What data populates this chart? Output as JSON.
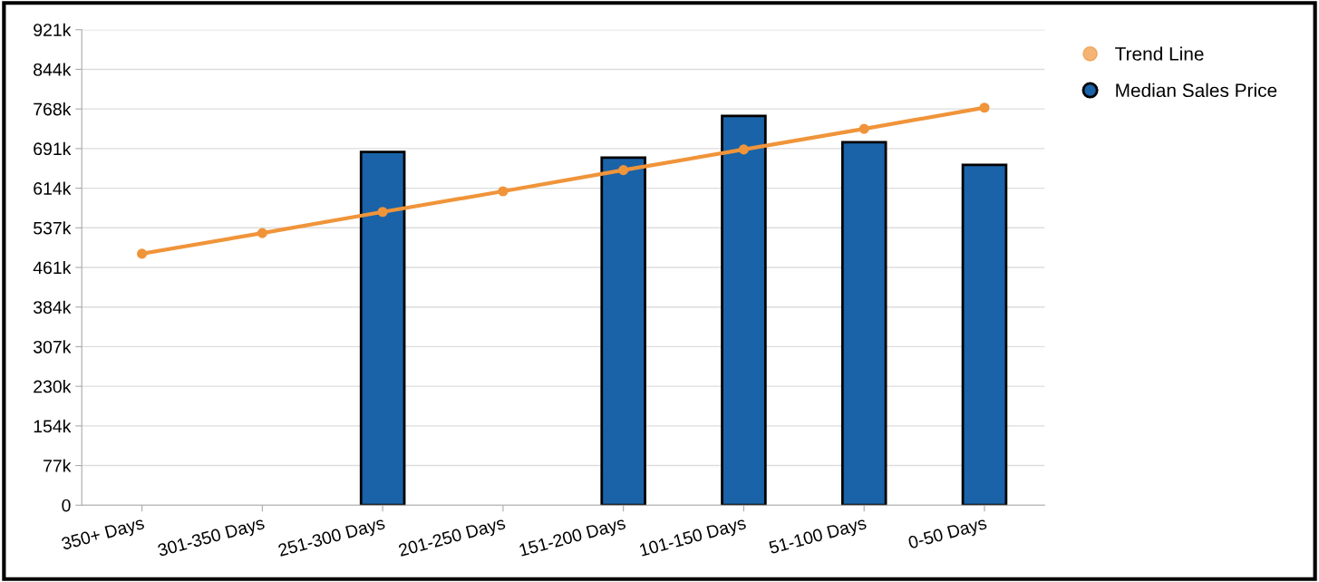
{
  "chart_data": {
    "type": "bar",
    "categories": [
      "350+ Days",
      "301-350 Days",
      "251-300 Days",
      "201-250 Days",
      "151-200 Days",
      "101-150 Days",
      "51-100 Days",
      "0-50 Days"
    ],
    "series": [
      {
        "name": "Trend Line",
        "type": "line",
        "color": "#f0943a",
        "marker": "circle",
        "values": [
          487000,
          527000,
          568000,
          608000,
          649000,
          689000,
          729000,
          770000
        ]
      },
      {
        "name": "Median Sales Price",
        "color": "#1a63a8",
        "values": [
          null,
          null,
          684000,
          null,
          673000,
          754000,
          703000,
          659000
        ]
      }
    ],
    "ylim": [
      0,
      921000
    ],
    "yticks": [
      0,
      {
        "value": 76750,
        "label": "77k"
      },
      {
        "value": 153500,
        "label": "154k"
      },
      {
        "value": 230250,
        "label": "230k"
      },
      {
        "value": 307000,
        "label": "307k"
      },
      {
        "value": 383750,
        "label": "384k"
      },
      {
        "value": 460500,
        "label": "461k"
      },
      {
        "value": 537250,
        "label": "537k"
      },
      {
        "value": 614000,
        "label": "614k"
      },
      {
        "value": 690750,
        "label": "691k"
      },
      {
        "value": 767500,
        "label": "768k"
      },
      {
        "value": 844250,
        "label": "844k"
      },
      {
        "value": 921000,
        "label": "921k"
      }
    ],
    "grid": "y",
    "legend": "top right"
  }
}
